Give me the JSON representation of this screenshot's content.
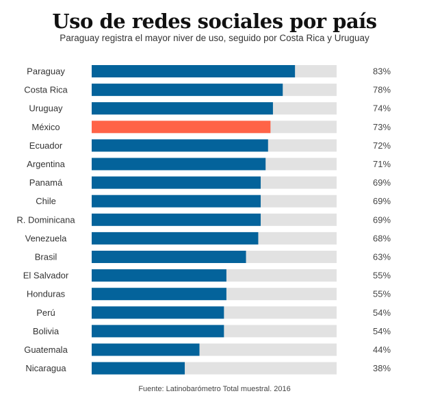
{
  "chart_data": {
    "type": "bar",
    "orientation": "horizontal",
    "title": "Uso de redes sociales por país",
    "subtitle": "Paraguay registra el mayor niver de uso, seguido por Costa Rica y Uruguay",
    "source": "Fuente: Latinobarómetro Total muestral. 2016",
    "xlabel": "",
    "ylabel": "",
    "xlim": [
      0,
      100
    ],
    "grid": false,
    "unit": "%",
    "colors": {
      "default": "#04639b",
      "highlight": "#ff6347",
      "track": "#e2e2e2"
    },
    "highlight_category": "México",
    "categories": [
      "Paraguay",
      "Costa Rica",
      "Uruguay",
      "México",
      "Ecuador",
      "Argentina",
      "Panamá",
      "Chile",
      "R. Dominicana",
      "Venezuela",
      "Brasil",
      "El Salvador",
      "Honduras",
      "Perú",
      "Bolivia",
      "Guatemala",
      "Nicaragua"
    ],
    "values": [
      83,
      78,
      74,
      73,
      72,
      71,
      69,
      69,
      69,
      68,
      63,
      55,
      55,
      54,
      54,
      44,
      38
    ],
    "value_labels": [
      "83%",
      "78%",
      "74%",
      "73%",
      "72%",
      "71%",
      "69%",
      "69%",
      "69%",
      "68%",
      "63%",
      "55%",
      "55%",
      "54%",
      "54%",
      "44%",
      "38%"
    ]
  }
}
